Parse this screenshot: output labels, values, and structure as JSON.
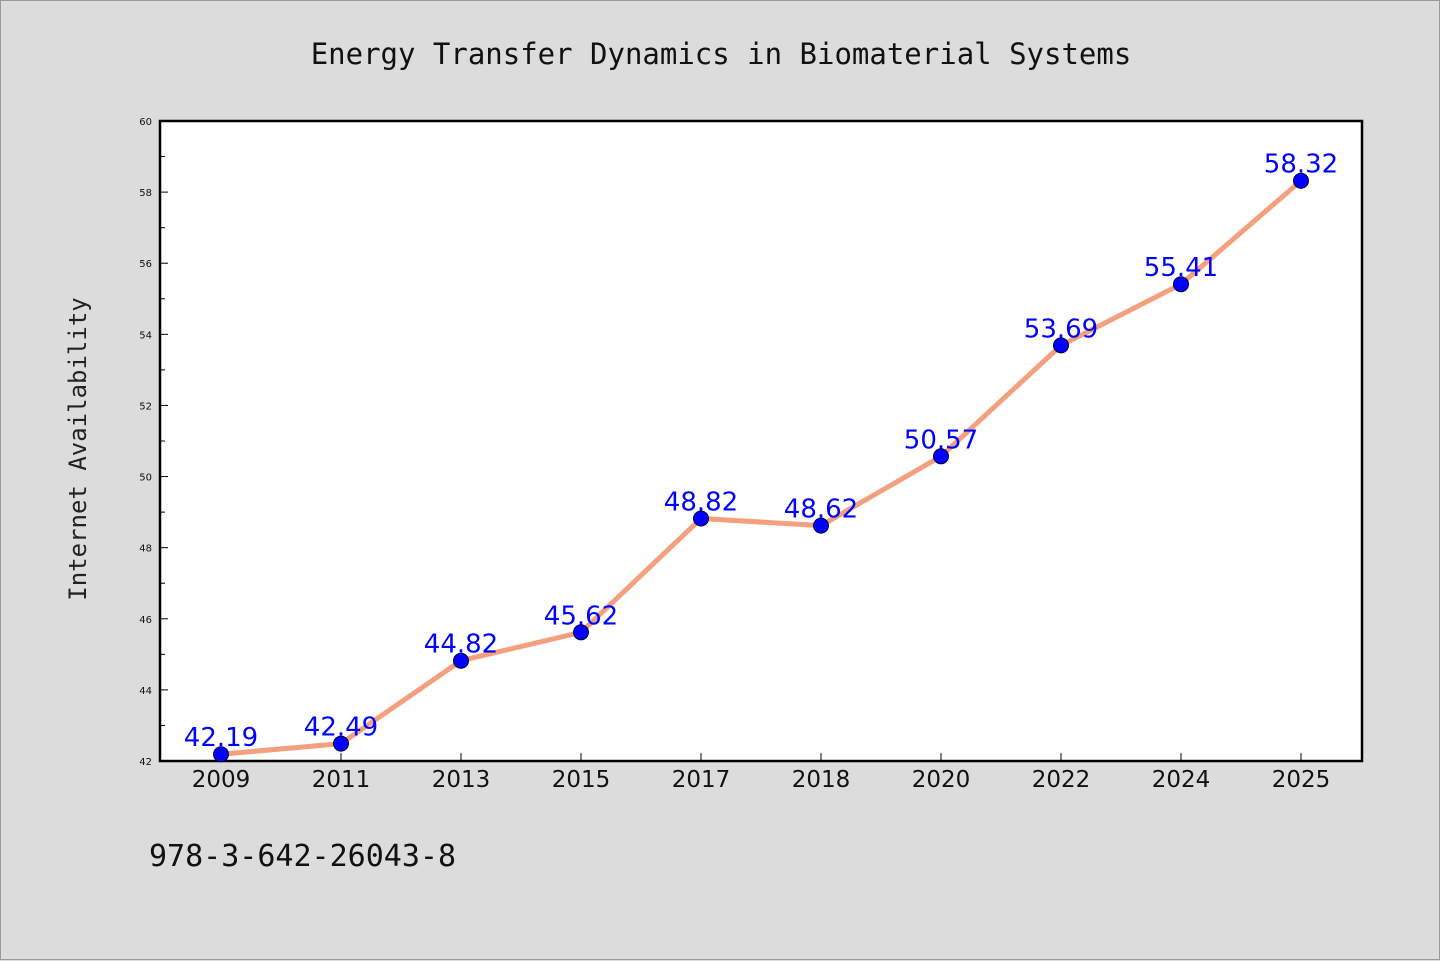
{
  "chart_data": {
    "type": "line",
    "title": "Energy Transfer Dynamics in Biomaterial Systems",
    "xlabel": "",
    "ylabel": "Internet Availability",
    "categories": [
      "2009",
      "2011",
      "2013",
      "2015",
      "2017",
      "2018",
      "2020",
      "2022",
      "2024",
      "2025"
    ],
    "series": [
      {
        "values": [
          42.19,
          42.49,
          44.82,
          45.62,
          48.82,
          48.62,
          50.57,
          53.69,
          55.41,
          58.32
        ],
        "labels": [
          "42.19",
          "42.49",
          "44.82",
          "45.62",
          "48.82",
          "48.62",
          "50.57",
          "53.69",
          "55.41",
          "58.32"
        ],
        "line_color": "#f4a07e",
        "marker_color": "#0000ff"
      }
    ],
    "ylim": [
      42,
      60
    ],
    "yticks": [
      "42",
      "44",
      "46",
      "48",
      "50",
      "52",
      "54",
      "56",
      "58",
      "60"
    ],
    "grid": false,
    "legend": "none"
  },
  "footnote": "978-3-642-26043-8"
}
